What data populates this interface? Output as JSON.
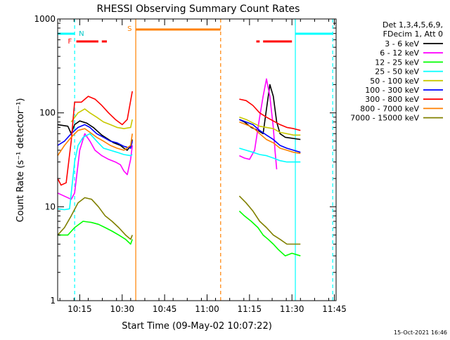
{
  "chart_data": {
    "type": "line",
    "title": "RHESSI Observing Summary Count Rates",
    "xlabel": "Start Time (09-May-02 10:07:22)",
    "ylabel": "Count Rate (s⁻¹ detector⁻¹)",
    "ylog": true,
    "ylim": [
      1,
      1000
    ],
    "xlim_minutes": [
      10.12,
      11.76
    ],
    "y_ticks": [
      {
        "v": 1,
        "label": "1"
      },
      {
        "v": 10,
        "label": "10"
      },
      {
        "v": 100,
        "label": "100"
      },
      {
        "v": 1000,
        "label": "1000"
      }
    ],
    "x_ticks": [
      {
        "v": 10.25,
        "label": "10:15"
      },
      {
        "v": 10.5,
        "label": "10:30"
      },
      {
        "v": 10.75,
        "label": "10:45"
      },
      {
        "v": 11.0,
        "label": "11:00"
      },
      {
        "v": 11.25,
        "label": "11:15"
      },
      {
        "v": 11.5,
        "label": "11:30"
      },
      {
        "v": 11.75,
        "label": "11:45"
      }
    ],
    "legend_header": [
      "Det 1,3,4,5,6,9,",
      "FDecim 1, Att 0"
    ],
    "legend_position": "right",
    "footer_date": "15-Oct-2021 16:46",
    "flag_labels": {
      "flare": "F",
      "night": "N",
      "saa": "S"
    },
    "series": [
      {
        "name": "3 - 6 keV",
        "color": "#000000",
        "points": [
          [
            10.12,
            75
          ],
          [
            10.18,
            72
          ],
          [
            10.2,
            60
          ],
          [
            10.22,
            75
          ],
          [
            10.25,
            82
          ],
          [
            10.29,
            78
          ],
          [
            10.33,
            70
          ],
          [
            10.38,
            58
          ],
          [
            10.42,
            52
          ],
          [
            10.45,
            48
          ],
          [
            10.49,
            45
          ],
          [
            10.51,
            42
          ],
          [
            10.53,
            40
          ],
          [
            10.55,
            45
          ],
          [
            10.56,
            52
          ],
          [
            null,
            null
          ],
          [
            11.19,
            85
          ],
          [
            11.22,
            80
          ],
          [
            11.26,
            70
          ],
          [
            11.3,
            65
          ],
          [
            11.33,
            60
          ],
          [
            11.35,
            110
          ],
          [
            11.37,
            200
          ],
          [
            11.39,
            150
          ],
          [
            11.41,
            80
          ],
          [
            11.43,
            60
          ],
          [
            11.46,
            55
          ],
          [
            11.49,
            54
          ],
          [
            11.52,
            53
          ],
          [
            11.55,
            52
          ]
        ]
      },
      {
        "name": "6 - 12 keV",
        "color": "#ff00ff",
        "points": [
          [
            10.12,
            14
          ],
          [
            10.2,
            12
          ],
          [
            10.22,
            14
          ],
          [
            10.25,
            40
          ],
          [
            10.28,
            60
          ],
          [
            10.31,
            50
          ],
          [
            10.34,
            40
          ],
          [
            10.38,
            35
          ],
          [
            10.42,
            32
          ],
          [
            10.46,
            30
          ],
          [
            10.49,
            28
          ],
          [
            10.51,
            24
          ],
          [
            10.53,
            22
          ],
          [
            10.55,
            32
          ],
          [
            10.56,
            45
          ],
          [
            null,
            null
          ],
          [
            11.19,
            35
          ],
          [
            11.22,
            33
          ],
          [
            11.25,
            32
          ],
          [
            11.28,
            40
          ],
          [
            11.31,
            90
          ],
          [
            11.33,
            150
          ],
          [
            11.35,
            230
          ],
          [
            11.37,
            150
          ],
          [
            11.39,
            70
          ],
          [
            11.4,
            40
          ],
          [
            11.41,
            25
          ]
        ]
      },
      {
        "name": "12 - 25 keV",
        "color": "#00ff00",
        "points": [
          [
            10.12,
            5
          ],
          [
            10.18,
            5
          ],
          [
            10.22,
            6
          ],
          [
            10.27,
            7
          ],
          [
            10.32,
            6.8
          ],
          [
            10.36,
            6.5
          ],
          [
            10.4,
            6
          ],
          [
            10.44,
            5.5
          ],
          [
            10.48,
            5
          ],
          [
            10.52,
            4.5
          ],
          [
            10.55,
            4
          ],
          [
            10.56,
            4.5
          ],
          [
            null,
            null
          ],
          [
            11.19,
            9
          ],
          [
            11.22,
            8
          ],
          [
            11.26,
            7
          ],
          [
            11.3,
            6
          ],
          [
            11.33,
            5
          ],
          [
            11.36,
            4.5
          ],
          [
            11.39,
            4
          ],
          [
            11.42,
            3.5
          ],
          [
            11.46,
            3
          ],
          [
            11.5,
            3.2
          ],
          [
            11.55,
            3
          ]
        ]
      },
      {
        "name": "25 - 50 keV",
        "color": "#00ffff",
        "points": [
          [
            10.12,
            9.5
          ],
          [
            10.16,
            9.3
          ],
          [
            10.19,
            9.5
          ],
          [
            10.22,
            30
          ],
          [
            10.24,
            45
          ],
          [
            10.27,
            55
          ],
          [
            10.31,
            60
          ],
          [
            10.35,
            50
          ],
          [
            10.39,
            42
          ],
          [
            10.43,
            40
          ],
          [
            10.47,
            38
          ],
          [
            10.51,
            36
          ],
          [
            10.55,
            35
          ],
          [
            10.56,
            36
          ],
          [
            null,
            null
          ],
          [
            11.19,
            42
          ],
          [
            11.23,
            40
          ],
          [
            11.27,
            38
          ],
          [
            11.31,
            36
          ],
          [
            11.35,
            35
          ],
          [
            11.39,
            33
          ],
          [
            11.43,
            31
          ],
          [
            11.47,
            30
          ],
          [
            11.51,
            30
          ],
          [
            11.55,
            30
          ]
        ]
      },
      {
        "name": "50 - 100 keV",
        "color": "#c8c800",
        "points": [
          [
            10.2,
            80
          ],
          [
            10.24,
            100
          ],
          [
            10.28,
            110
          ],
          [
            10.31,
            100
          ],
          [
            10.35,
            90
          ],
          [
            10.39,
            80
          ],
          [
            10.43,
            75
          ],
          [
            10.47,
            70
          ],
          [
            10.51,
            68
          ],
          [
            10.55,
            70
          ],
          [
            10.56,
            85
          ],
          [
            null,
            null
          ],
          [
            11.19,
            90
          ],
          [
            11.23,
            85
          ],
          [
            11.27,
            78
          ],
          [
            11.31,
            72
          ],
          [
            11.35,
            70
          ],
          [
            11.39,
            68
          ],
          [
            11.43,
            62
          ],
          [
            11.47,
            60
          ],
          [
            11.51,
            58
          ],
          [
            11.55,
            58
          ]
        ]
      },
      {
        "name": "100 - 300 keV",
        "color": "#0000ff",
        "points": [
          [
            10.12,
            45
          ],
          [
            10.16,
            50
          ],
          [
            10.2,
            60
          ],
          [
            10.24,
            70
          ],
          [
            10.28,
            75
          ],
          [
            10.31,
            70
          ],
          [
            10.35,
            60
          ],
          [
            10.39,
            55
          ],
          [
            10.43,
            50
          ],
          [
            10.47,
            48
          ],
          [
            10.51,
            44
          ],
          [
            10.55,
            42
          ],
          [
            10.56,
            50
          ],
          [
            null,
            null
          ],
          [
            11.19,
            85
          ],
          [
            11.23,
            80
          ],
          [
            11.27,
            75
          ],
          [
            11.31,
            65
          ],
          [
            11.35,
            58
          ],
          [
            11.39,
            52
          ],
          [
            11.43,
            45
          ],
          [
            11.47,
            42
          ],
          [
            11.51,
            40
          ],
          [
            11.55,
            38
          ]
        ]
      },
      {
        "name": "300 - 800 keV",
        "color": "#ff0000",
        "points": [
          [
            10.12,
            20
          ],
          [
            10.14,
            17
          ],
          [
            10.17,
            18
          ],
          [
            10.2,
            50
          ],
          [
            10.22,
            130
          ],
          [
            10.26,
            130
          ],
          [
            10.3,
            150
          ],
          [
            10.34,
            140
          ],
          [
            10.38,
            120
          ],
          [
            10.42,
            100
          ],
          [
            10.46,
            85
          ],
          [
            10.5,
            75
          ],
          [
            10.53,
            85
          ],
          [
            10.56,
            170
          ],
          [
            null,
            null
          ],
          [
            11.19,
            140
          ],
          [
            11.23,
            135
          ],
          [
            11.27,
            120
          ],
          [
            11.31,
            100
          ],
          [
            11.35,
            90
          ],
          [
            11.39,
            82
          ],
          [
            11.43,
            75
          ],
          [
            11.47,
            70
          ],
          [
            11.51,
            68
          ],
          [
            11.55,
            65
          ]
        ]
      },
      {
        "name": "800 - 7000 keV",
        "color": "#ff8000",
        "points": [
          [
            10.12,
            35
          ],
          [
            10.16,
            45
          ],
          [
            10.2,
            55
          ],
          [
            10.24,
            65
          ],
          [
            10.28,
            68
          ],
          [
            10.31,
            62
          ],
          [
            10.35,
            55
          ],
          [
            10.39,
            50
          ],
          [
            10.43,
            45
          ],
          [
            10.47,
            42
          ],
          [
            10.51,
            40
          ],
          [
            10.55,
            45
          ],
          [
            10.56,
            60
          ],
          [
            null,
            null
          ],
          [
            11.19,
            80
          ],
          [
            11.23,
            75
          ],
          [
            11.27,
            70
          ],
          [
            11.31,
            60
          ],
          [
            11.35,
            52
          ],
          [
            11.39,
            48
          ],
          [
            11.43,
            42
          ],
          [
            11.47,
            40
          ],
          [
            11.51,
            38
          ],
          [
            11.55,
            37
          ]
        ]
      },
      {
        "name": "7000 - 15000 keV",
        "color": "#808000",
        "points": [
          [
            10.12,
            5
          ],
          [
            10.16,
            6
          ],
          [
            10.2,
            8
          ],
          [
            10.24,
            11
          ],
          [
            10.28,
            12.5
          ],
          [
            10.32,
            12
          ],
          [
            10.36,
            10
          ],
          [
            10.4,
            8
          ],
          [
            10.44,
            7
          ],
          [
            10.48,
            6
          ],
          [
            10.52,
            5
          ],
          [
            10.55,
            4.5
          ],
          [
            10.56,
            5
          ],
          [
            null,
            null
          ],
          [
            11.19,
            13
          ],
          [
            11.23,
            11
          ],
          [
            11.27,
            9
          ],
          [
            11.31,
            7
          ],
          [
            11.35,
            6
          ],
          [
            11.39,
            5
          ],
          [
            11.43,
            4.5
          ],
          [
            11.47,
            4
          ],
          [
            11.51,
            4
          ],
          [
            11.55,
            4
          ]
        ]
      }
    ],
    "flags": {
      "night": [
        [
          10.12,
          10.22
        ],
        [
          11.52,
          11.74
        ]
      ],
      "flare": [
        [
          10.23,
          10.36
        ],
        [
          10.38,
          10.41
        ],
        [
          11.29,
          11.31
        ],
        [
          11.33,
          11.5
        ]
      ],
      "saa": [
        [
          10.58,
          11.08
        ]
      ],
      "vlines": [
        {
          "x": 10.22,
          "color": "#00ffff",
          "style": "dashed"
        },
        {
          "x": 10.58,
          "color": "#ff8000",
          "style": "solid"
        },
        {
          "x": 11.08,
          "color": "#ff8000",
          "style": "dashed"
        },
        {
          "x": 11.52,
          "color": "#00ffff",
          "style": "solid"
        },
        {
          "x": 11.74,
          "color": "#00ffff",
          "style": "dashed"
        }
      ]
    }
  }
}
